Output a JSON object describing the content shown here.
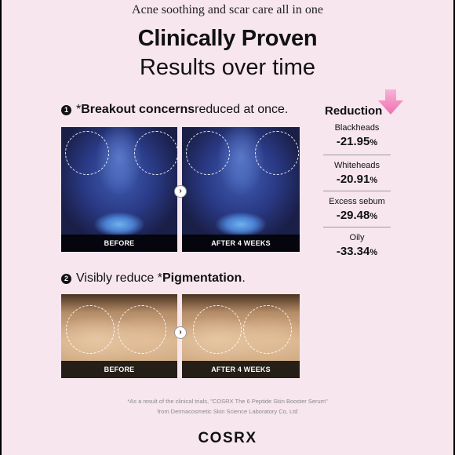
{
  "tagline": "Acne soothing and scar care all in one",
  "headline": "Clinically Proven",
  "subhead": "Results over time",
  "section1": {
    "number": "1",
    "prefix": "*",
    "bold": "Breakout concerns",
    "rest": " reduced at once."
  },
  "section2": {
    "number": "2",
    "prefix": "Visibly reduce *",
    "bold": "Pigmentation",
    "rest": "."
  },
  "photos": {
    "before_label": "BEFORE",
    "after_label": "AFTER 4 WEEKS",
    "arrow": "›"
  },
  "reduction": {
    "title": "Reduction",
    "arrow_color": "#f48fc4",
    "stats": [
      {
        "name": "Blackheads",
        "value": "-21.95",
        "unit": "%"
      },
      {
        "name": "Whiteheads",
        "value": "-20.91",
        "unit": "%"
      },
      {
        "name": "Excess sebum",
        "value": "-29.48",
        "unit": "%"
      },
      {
        "name": "Oily",
        "value": "-33.34",
        "unit": "%"
      }
    ]
  },
  "footnote": {
    "line1": "*As a result of the clinical trials, \"COSRX The 6 Peptide Skin Booster Serum\"",
    "line2": "from Dermacosmetic Skin Science Laboratory Co, Ltd"
  },
  "brand": "COSRX",
  "colors": {
    "background": "#f7e6ee",
    "accent": "#f48fc4"
  }
}
